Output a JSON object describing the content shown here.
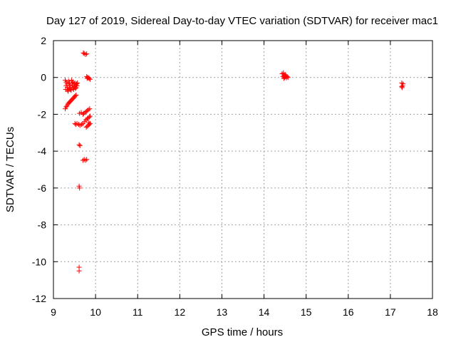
{
  "chart_data": {
    "type": "scatter",
    "title": "Day 127 of 2019, Sidereal Day-to-day VTEC variation (SDTVAR) for receiver mac1",
    "xlabel": "GPS time / hours",
    "ylabel": "SDTVAR / TECUs",
    "xlim": [
      9,
      18
    ],
    "ylim": [
      -12,
      2
    ],
    "xticks": [
      9,
      10,
      11,
      12,
      13,
      14,
      15,
      16,
      17,
      18
    ],
    "yticks": [
      2,
      0,
      -2,
      -4,
      -6,
      -8,
      -10,
      -12
    ],
    "grid": true,
    "marker": "+",
    "colors": {
      "points": "#ff0000",
      "grid": "#a0a0a0",
      "axes": "#000000"
    },
    "series": [
      {
        "name": "SDTVAR",
        "points": [
          [
            9.28,
            -0.15
          ],
          [
            9.3,
            -0.25
          ],
          [
            9.32,
            -0.35
          ],
          [
            9.3,
            -0.45
          ],
          [
            9.33,
            -0.55
          ],
          [
            9.29,
            -0.65
          ],
          [
            9.34,
            -0.7
          ],
          [
            9.36,
            -0.2
          ],
          [
            9.38,
            -0.3
          ],
          [
            9.4,
            -0.4
          ],
          [
            9.37,
            -0.55
          ],
          [
            9.41,
            -0.65
          ],
          [
            9.35,
            -0.75
          ],
          [
            9.39,
            -0.6
          ],
          [
            9.43,
            -0.15
          ],
          [
            9.45,
            -0.3
          ],
          [
            9.44,
            -0.45
          ],
          [
            9.46,
            -0.55
          ],
          [
            9.42,
            -0.7
          ],
          [
            9.47,
            -0.25
          ],
          [
            9.49,
            -0.35
          ],
          [
            9.51,
            -0.3
          ],
          [
            9.5,
            -0.5
          ],
          [
            9.52,
            -0.6
          ],
          [
            9.48,
            -0.65
          ],
          [
            9.53,
            -0.4
          ],
          [
            9.55,
            -0.35
          ],
          [
            9.54,
            -0.55
          ],
          [
            9.56,
            -0.45
          ],
          [
            9.57,
            -0.3
          ],
          [
            9.28,
            -1.7
          ],
          [
            9.3,
            -1.6
          ],
          [
            9.32,
            -1.55
          ],
          [
            9.34,
            -1.45
          ],
          [
            9.36,
            -1.4
          ],
          [
            9.38,
            -1.35
          ],
          [
            9.4,
            -1.3
          ],
          [
            9.42,
            -1.25
          ],
          [
            9.44,
            -1.2
          ],
          [
            9.46,
            -1.15
          ],
          [
            9.48,
            -1.1
          ],
          [
            9.5,
            -1.05
          ],
          [
            9.52,
            -1.0
          ],
          [
            9.54,
            -0.95
          ],
          [
            9.51,
            -2.5
          ],
          [
            9.53,
            -2.55
          ],
          [
            9.56,
            -2.5
          ],
          [
            9.6,
            -2.55
          ],
          [
            9.63,
            -2.6
          ],
          [
            9.67,
            -2.55
          ],
          [
            9.7,
            -2.5
          ],
          [
            9.62,
            -1.95
          ],
          [
            9.66,
            -1.9
          ],
          [
            9.7,
            -2.0
          ],
          [
            9.72,
            -1.95
          ],
          [
            9.75,
            -1.9
          ],
          [
            9.78,
            -1.85
          ],
          [
            9.8,
            -1.8
          ],
          [
            9.83,
            -1.75
          ],
          [
            9.86,
            -1.7
          ],
          [
            9.74,
            -2.4
          ],
          [
            9.77,
            -2.3
          ],
          [
            9.8,
            -2.25
          ],
          [
            9.82,
            -2.2
          ],
          [
            9.85,
            -2.15
          ],
          [
            9.87,
            -2.1
          ],
          [
            9.78,
            -2.7
          ],
          [
            9.8,
            -2.65
          ],
          [
            9.83,
            -2.6
          ],
          [
            9.85,
            -2.55
          ],
          [
            9.87,
            -2.5
          ],
          [
            9.84,
            -2.45
          ],
          [
            9.71,
            1.33
          ],
          [
            9.73,
            1.3
          ],
          [
            9.76,
            1.25
          ],
          [
            9.79,
            1.28
          ],
          [
            9.79,
            0.05
          ],
          [
            9.81,
            0.0
          ],
          [
            9.83,
            -0.02
          ],
          [
            9.85,
            -0.05
          ],
          [
            9.87,
            -0.1
          ],
          [
            9.8,
            -0.05
          ],
          [
            9.61,
            -3.65
          ],
          [
            9.63,
            -3.7
          ],
          [
            9.7,
            -4.5
          ],
          [
            9.73,
            -4.45
          ],
          [
            9.76,
            -4.5
          ],
          [
            9.79,
            -4.45
          ],
          [
            9.61,
            -5.9
          ],
          [
            9.62,
            -6.0
          ],
          [
            9.61,
            -10.3
          ],
          [
            9.61,
            -10.5
          ],
          [
            14.43,
            0.2
          ],
          [
            14.46,
            0.25
          ],
          [
            14.48,
            0.1
          ],
          [
            14.5,
            0.15
          ],
          [
            14.45,
            0.05
          ],
          [
            14.49,
            0.0
          ],
          [
            14.52,
            0.1
          ],
          [
            14.47,
            -0.05
          ],
          [
            14.51,
            0.05
          ],
          [
            14.55,
            0.05
          ],
          [
            14.53,
            -0.02
          ],
          [
            14.57,
            0.0
          ],
          [
            17.27,
            -0.3
          ],
          [
            17.29,
            -0.45
          ],
          [
            17.28,
            -0.55
          ],
          [
            17.3,
            -0.35
          ],
          [
            17.27,
            -0.5
          ]
        ]
      }
    ]
  }
}
